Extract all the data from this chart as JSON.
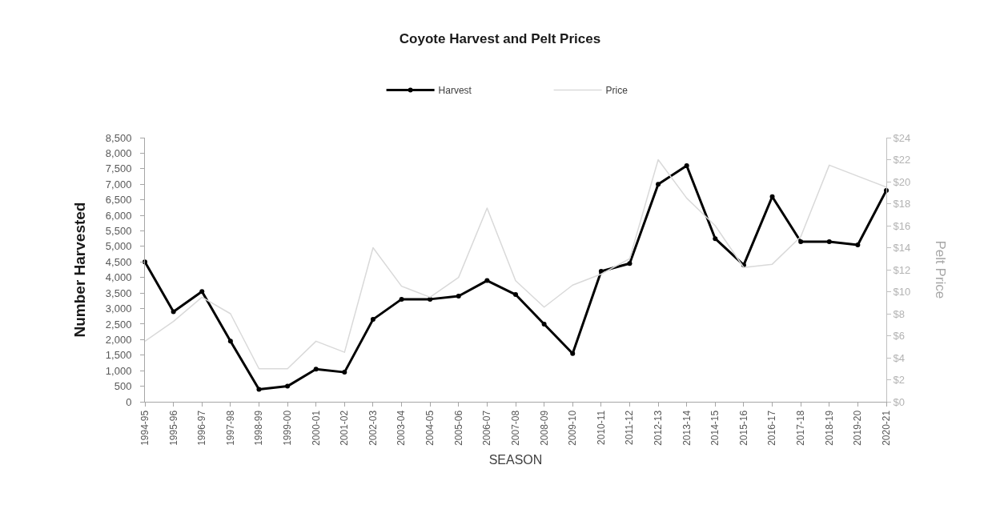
{
  "chart_data": {
    "type": "line",
    "title": "Coyote Harvest and Pelt Prices",
    "xlabel": "SEASON",
    "ylabel": "Number Harvested",
    "y2label": "Pelt Price",
    "categories": [
      "1994-95",
      "1995-96",
      "1996-97",
      "1997-98",
      "1998-99",
      "1999-00",
      "2000-01",
      "2001-02",
      "2002-03",
      "2003-04",
      "2004-05",
      "2005-06",
      "2006-07",
      "2007-08",
      "2008-09",
      "2009-10",
      "2010-11",
      "2011-12",
      "2012-13",
      "2013-14",
      "2014-15",
      "2015-16",
      "2016-17",
      "2017-18",
      "2018-19",
      "2019-20",
      "2020-21"
    ],
    "series": [
      {
        "name": "Harvest",
        "color": "#000000",
        "marker": "circle",
        "values": [
          4500,
          2900,
          3550,
          1950,
          400,
          500,
          1050,
          950,
          2650,
          3300,
          3300,
          3400,
          3900,
          3450,
          2500,
          1550,
          4200,
          4450,
          7000,
          7600,
          5250,
          4400,
          6600,
          5150,
          5150,
          5050,
          6800
        ]
      },
      {
        "name": "Price",
        "color": "#d9d9d9",
        "marker": "none",
        "axis": "y2",
        "values": [
          5.5,
          7.3,
          9.5,
          8,
          3,
          3,
          5.5,
          4.5,
          14,
          10.5,
          9.5,
          11.3,
          17.6,
          11,
          8.6,
          10.6,
          11.6,
          13,
          22,
          18.5,
          16,
          12.2,
          12.5,
          15,
          21.5,
          20.5,
          19.5
        ]
      }
    ],
    "ylim": [
      0,
      8500
    ],
    "yticks": [
      0,
      500,
      {
        "value": 1000,
        "label": "1,000"
      },
      {
        "value": 1500,
        "label": "1,500"
      },
      {
        "value": 2000,
        "label": "2,000"
      },
      {
        "value": 2500,
        "label": "2,500"
      },
      {
        "value": 3000,
        "label": "3,000"
      },
      {
        "value": 3500,
        "label": "3,500"
      },
      {
        "value": 4000,
        "label": "4,000"
      },
      {
        "value": 4500,
        "label": "4,500"
      },
      {
        "value": 5000,
        "label": "5,000"
      },
      {
        "value": 5500,
        "label": "5,500"
      },
      {
        "value": 6000,
        "label": "6,000"
      },
      {
        "value": 6500,
        "label": "6,500"
      },
      {
        "value": 7000,
        "label": "7,000"
      },
      {
        "value": 7500,
        "label": "7,500"
      },
      {
        "value": 8000,
        "label": "8,000"
      },
      {
        "value": 8500,
        "label": "8,500"
      }
    ],
    "y2lim": [
      0,
      24
    ],
    "y2ticks": [
      {
        "value": 0,
        "label": "$0"
      },
      {
        "value": 2,
        "label": "$2"
      },
      {
        "value": 4,
        "label": "$4"
      },
      {
        "value": 6,
        "label": "$6"
      },
      {
        "value": 8,
        "label": "$8"
      },
      {
        "value": 10,
        "label": "$10"
      },
      {
        "value": 12,
        "label": "$12"
      },
      {
        "value": 14,
        "label": "$14"
      },
      {
        "value": 16,
        "label": "$16"
      },
      {
        "value": 18,
        "label": "$18"
      },
      {
        "value": 20,
        "label": "$20"
      },
      {
        "value": 22,
        "label": "$22"
      },
      {
        "value": 24,
        "label": "$24"
      }
    ],
    "grid": false,
    "legend": "top"
  }
}
